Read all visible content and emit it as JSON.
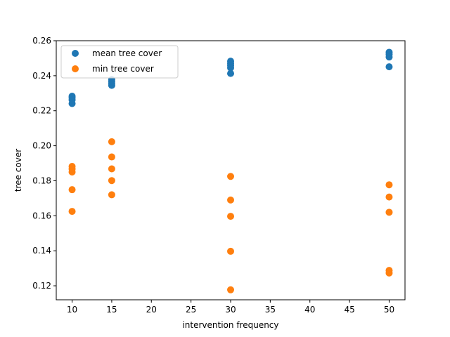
{
  "chart_data": {
    "type": "scatter",
    "title": "",
    "xlabel": "intervention frequency",
    "ylabel": "tree cover",
    "xlim": [
      8,
      52
    ],
    "ylim": [
      0.112,
      0.26
    ],
    "xticks": [
      10,
      15,
      20,
      25,
      30,
      35,
      40,
      45,
      50
    ],
    "yticks": [
      0.12,
      0.14,
      0.16,
      0.18,
      0.2,
      0.22,
      0.24,
      0.26
    ],
    "ytick_labels": [
      "0.12",
      "0.14",
      "0.16",
      "0.18",
      "0.20",
      "0.22",
      "0.24",
      "0.26"
    ],
    "grid": false,
    "legend_position": "top-left",
    "series": [
      {
        "name": "mean tree cover",
        "color": "#1f77b4",
        "points": [
          [
            10,
            0.2283
          ],
          [
            10,
            0.2275
          ],
          [
            10,
            0.2262
          ],
          [
            10,
            0.2241
          ],
          [
            15,
            0.2378
          ],
          [
            15,
            0.2366
          ],
          [
            15,
            0.2355
          ],
          [
            15,
            0.2345
          ],
          [
            30,
            0.2483
          ],
          [
            30,
            0.247
          ],
          [
            30,
            0.2458
          ],
          [
            30,
            0.2445
          ],
          [
            30,
            0.2413
          ],
          [
            50,
            0.2534
          ],
          [
            50,
            0.2522
          ],
          [
            50,
            0.2507
          ],
          [
            50,
            0.2451
          ]
        ]
      },
      {
        "name": "min tree cover",
        "color": "#ff7f0e",
        "points": [
          [
            10,
            0.1882
          ],
          [
            10,
            0.1867
          ],
          [
            10,
            0.185
          ],
          [
            10,
            0.1749
          ],
          [
            10,
            0.1625
          ],
          [
            15,
            0.2023
          ],
          [
            15,
            0.1936
          ],
          [
            15,
            0.1868
          ],
          [
            15,
            0.1801
          ],
          [
            15,
            0.172
          ],
          [
            30,
            0.1825
          ],
          [
            30,
            0.169
          ],
          [
            30,
            0.1597
          ],
          [
            30,
            0.1397
          ],
          [
            30,
            0.1177
          ],
          [
            50,
            0.1777
          ],
          [
            50,
            0.1707
          ],
          [
            50,
            0.162
          ],
          [
            50,
            0.1288
          ],
          [
            50,
            0.1273
          ]
        ]
      }
    ]
  }
}
